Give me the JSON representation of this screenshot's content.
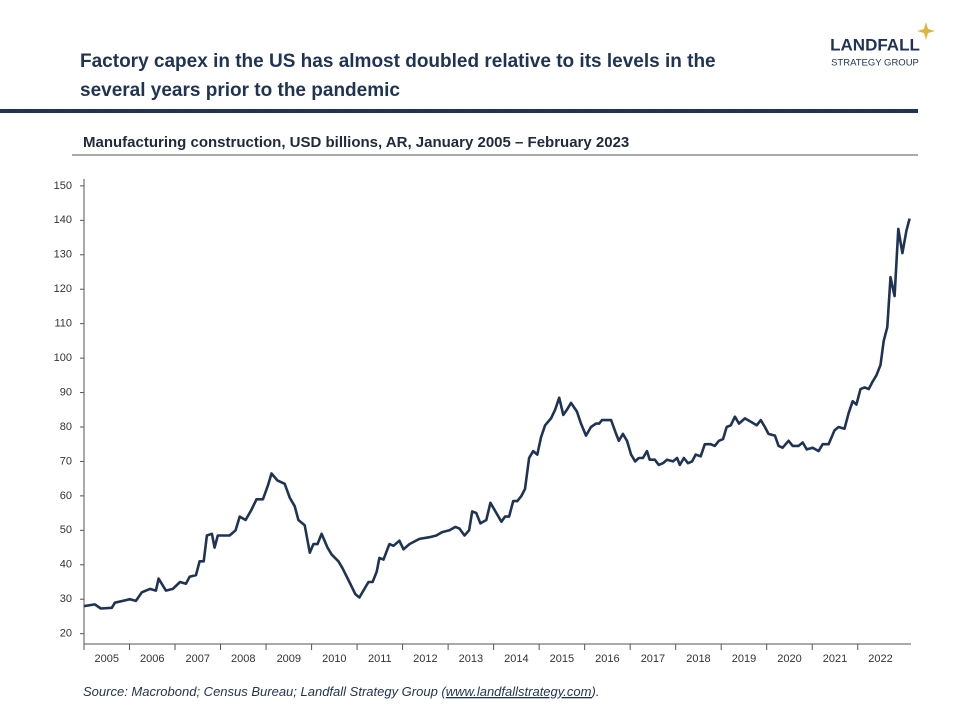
{
  "logo": {
    "name": "LANDFALL",
    "tagline": "STRATEGY GROUP"
  },
  "chart_data": {
    "type": "line",
    "title": [
      "Factory capex in the US has almost doubled relative to its levels in the",
      "several years prior to the pandemic"
    ],
    "subtitle": "Manufacturing construction, USD billions, AR, January 2005 – February 2023",
    "source": {
      "prefix": "Source: Macrobond; Census Bureau; Landfall Strategy Group (",
      "link": "www.landfallstrategy.com",
      "suffix": ")."
    },
    "color": "#1f3354",
    "x": [
      2005.0,
      2005.24,
      2005.37,
      2005.61,
      2005.68,
      2006.01,
      2006.14,
      2006.27,
      2006.45,
      2006.58,
      2006.64,
      2006.8,
      2006.95,
      2007.11,
      2007.24,
      2007.32,
      2007.46,
      2007.54,
      2007.63,
      2007.7,
      2007.81,
      2007.87,
      2007.94,
      2008.2,
      2008.33,
      2008.42,
      2008.55,
      2008.68,
      2008.79,
      2008.93,
      2009.04,
      2009.12,
      2009.25,
      2009.41,
      2009.52,
      2009.63,
      2009.71,
      2009.85,
      2009.96,
      2010.04,
      2010.13,
      2010.22,
      2010.35,
      2010.44,
      2010.59,
      2010.68,
      2010.83,
      2010.96,
      2011.05,
      2011.16,
      2011.25,
      2011.34,
      2011.43,
      2011.49,
      2011.58,
      2011.71,
      2011.8,
      2011.93,
      2012.02,
      2012.15,
      2012.37,
      2012.59,
      2012.74,
      2012.87,
      2013.03,
      2013.16,
      2013.25,
      2013.36,
      2013.46,
      2013.53,
      2013.62,
      2013.71,
      2013.84,
      2013.93,
      2014.06,
      2014.17,
      2014.25,
      2014.34,
      2014.43,
      2014.52,
      2014.61,
      2014.69,
      2014.78,
      2014.87,
      2014.96,
      2015.04,
      2015.13,
      2015.26,
      2015.35,
      2015.44,
      2015.53,
      2015.61,
      2015.7,
      2015.83,
      2015.92,
      2016.03,
      2016.14,
      2016.25,
      2016.32,
      2016.38,
      2016.58,
      2016.69,
      2016.75,
      2016.84,
      2016.93,
      2017.02,
      2017.11,
      2017.19,
      2017.28,
      2017.37,
      2017.43,
      2017.54,
      2017.63,
      2017.72,
      2017.81,
      2017.94,
      2018.03,
      2018.09,
      2018.18,
      2018.27,
      2018.36,
      2018.44,
      2018.55,
      2018.64,
      2018.77,
      2018.86,
      2018.95,
      2019.04,
      2019.12,
      2019.21,
      2019.3,
      2019.39,
      2019.52,
      2019.65,
      2019.78,
      2019.87,
      2019.96,
      2020.04,
      2020.18,
      2020.26,
      2020.35,
      2020.48,
      2020.57,
      2020.7,
      2020.79,
      2020.88,
      2021.01,
      2021.14,
      2021.23,
      2021.36,
      2021.49,
      2021.58,
      2021.71,
      2021.8,
      2021.89,
      2021.97,
      2022.06,
      2022.15,
      2022.24,
      2022.32,
      2022.41,
      2022.5,
      2022.57,
      2022.65,
      2022.72,
      2022.81,
      2022.89,
      2022.98,
      2023.07,
      2023.14
    ],
    "values": [
      28,
      28.5,
      27.3,
      27.5,
      29,
      30,
      29.5,
      32,
      33,
      32.5,
      36,
      32.5,
      33,
      35,
      34.5,
      36.5,
      37,
      41,
      41,
      48.5,
      49,
      45,
      48.5,
      48.5,
      50,
      54,
      53,
      56,
      59,
      59,
      63,
      66.5,
      64.5,
      63.5,
      59.5,
      57,
      53,
      51.5,
      43.5,
      46,
      46,
      49,
      45,
      43,
      41,
      39,
      35,
      31.5,
      30.5,
      33,
      35,
      35,
      38,
      42,
      41.5,
      46,
      45.5,
      47,
      44.5,
      46,
      47.5,
      48,
      48.5,
      49.5,
      50,
      51,
      50.5,
      48.5,
      50,
      55.5,
      55,
      52,
      53,
      58,
      55,
      52.5,
      54,
      54,
      58.5,
      58.5,
      60,
      62,
      71,
      73,
      72,
      77,
      80.5,
      82.5,
      85,
      88.5,
      83.5,
      85,
      87,
      84.5,
      81,
      77.5,
      80,
      81,
      81,
      82,
      82,
      78,
      76,
      78,
      76,
      72,
      70,
      71,
      71,
      73,
      70.5,
      70.5,
      69,
      69.5,
      70.5,
      70,
      71,
      69,
      71,
      69.5,
      70,
      72,
      71.5,
      75,
      75,
      74.5,
      76,
      76.5,
      80,
      80.5,
      83,
      81,
      82.5,
      81.5,
      80.5,
      82,
      80,
      78,
      77.5,
      74.5,
      74,
      76,
      74.5,
      74.5,
      75.5,
      73.5,
      74,
      73,
      75,
      75,
      79,
      80,
      79.5,
      84,
      87.5,
      86.5,
      91,
      91.5,
      91,
      93,
      95,
      98,
      105,
      109,
      123.5,
      118,
      137.5,
      130.5,
      137,
      140.5
    ],
    "xlim": [
      2005,
      2023.17
    ],
    "xticks": [
      {
        "value": 2005,
        "label": "2005"
      },
      {
        "value": 2006,
        "label": "2006"
      },
      {
        "value": 2007,
        "label": "2007"
      },
      {
        "value": 2008,
        "label": "2008"
      },
      {
        "value": 2009,
        "label": "2009"
      },
      {
        "value": 2010,
        "label": "2010"
      },
      {
        "value": 2011,
        "label": "2011"
      },
      {
        "value": 2012,
        "label": "2012"
      },
      {
        "value": 2013,
        "label": "2013"
      },
      {
        "value": 2014,
        "label": "2014"
      },
      {
        "value": 2015,
        "label": "2015"
      },
      {
        "value": 2016,
        "label": "2016"
      },
      {
        "value": 2017,
        "label": "2017"
      },
      {
        "value": 2018,
        "label": "2018"
      },
      {
        "value": 2019,
        "label": "2019"
      },
      {
        "value": 2020,
        "label": "2020"
      },
      {
        "value": 2021,
        "label": "2021"
      },
      {
        "value": 2022,
        "label": "2022"
      }
    ],
    "ylim": [
      17,
      152
    ],
    "yticks": [
      20,
      30,
      40,
      50,
      60,
      70,
      80,
      90,
      100,
      110,
      120,
      130,
      140,
      150
    ],
    "grid": false
  }
}
